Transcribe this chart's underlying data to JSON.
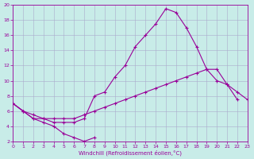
{
  "xlabel": "Windchill (Refroidissement éolien,°C)",
  "bg_color": "#c8ece8",
  "line_color": "#990099",
  "grid_color": "#aaaacc",
  "xlim": [
    0,
    23
  ],
  "ylim": [
    2,
    20
  ],
  "xticks": [
    0,
    1,
    2,
    3,
    4,
    5,
    6,
    7,
    8,
    9,
    10,
    11,
    12,
    13,
    14,
    15,
    16,
    17,
    18,
    19,
    20,
    21,
    22,
    23
  ],
  "yticks": [
    2,
    4,
    6,
    8,
    10,
    12,
    14,
    16,
    18,
    20
  ],
  "line1_x": [
    0,
    1,
    2,
    3,
    4,
    5,
    6,
    7,
    8
  ],
  "line1_y": [
    7,
    6,
    5,
    4.5,
    4,
    3,
    2.5,
    2,
    2.5
  ],
  "line2_x": [
    0,
    1,
    2,
    3,
    4,
    5,
    6,
    7,
    8,
    9,
    10,
    11,
    12,
    13,
    14,
    15,
    16,
    17,
    18,
    19,
    20,
    21,
    22
  ],
  "line2_y": [
    7,
    6,
    5,
    5,
    4.5,
    4.5,
    4.5,
    5,
    8,
    8.5,
    10.5,
    12,
    14.5,
    16,
    17.5,
    19.5,
    19,
    17,
    14.5,
    11.5,
    10,
    9.5,
    7.5
  ],
  "line3_x": [
    0,
    1,
    2,
    3,
    4,
    5,
    6,
    7,
    8,
    9,
    10,
    11,
    12,
    13,
    14,
    15,
    16,
    17,
    18,
    19,
    20,
    21,
    22,
    23
  ],
  "line3_y": [
    7,
    6,
    5.5,
    5,
    5,
    5,
    5,
    5.5,
    6,
    6.5,
    7,
    7.5,
    8,
    8.5,
    9,
    9.5,
    10,
    10.5,
    11,
    11.5,
    11.5,
    9.5,
    8.5,
    7.5
  ]
}
